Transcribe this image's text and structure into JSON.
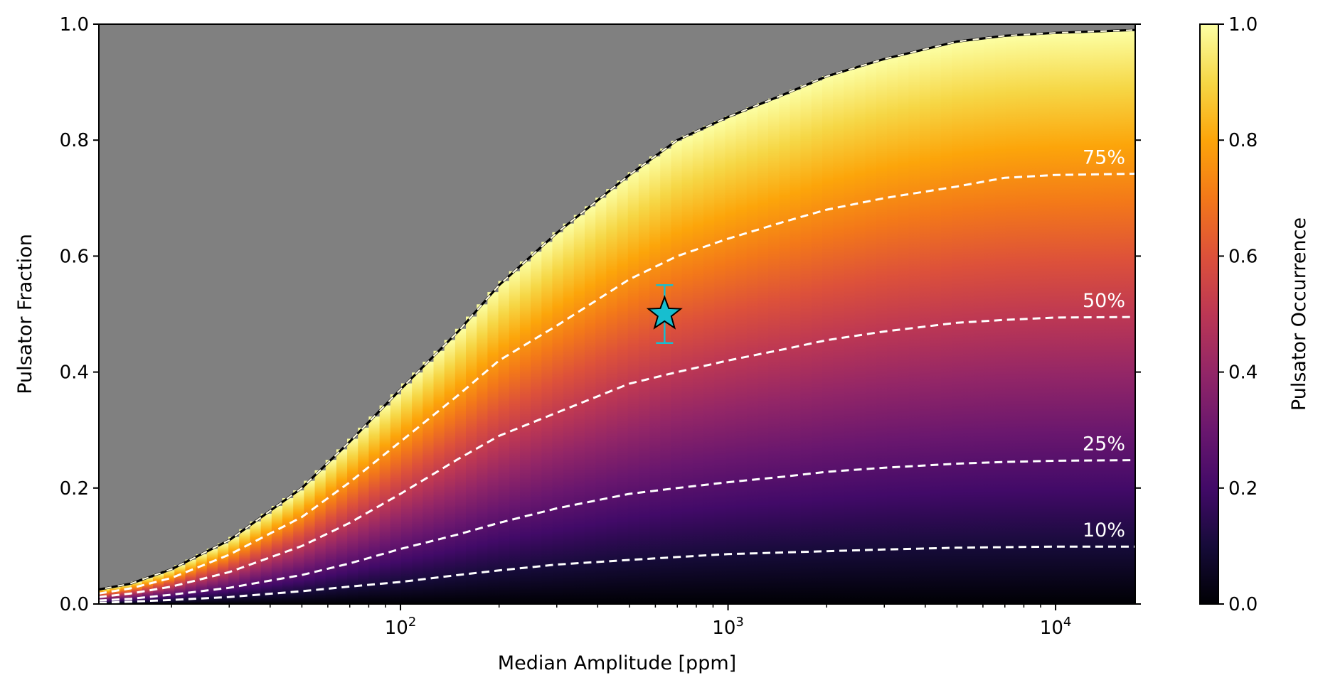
{
  "chart_data": {
    "type": "heatmap",
    "xlabel": "Median Amplitude [ppm]",
    "ylabel": "Pulsator Fraction",
    "x_scale": "log",
    "xlim": [
      12,
      17500
    ],
    "ylim": [
      0.0,
      1.0
    ],
    "x_ticks": [
      {
        "value": 100,
        "base": "10",
        "exp": "2"
      },
      {
        "value": 1000,
        "base": "10",
        "exp": "3"
      },
      {
        "value": 10000,
        "base": "10",
        "exp": "4"
      }
    ],
    "y_ticks": [
      "0.0",
      "0.2",
      "0.4",
      "0.6",
      "0.8",
      "1.0"
    ],
    "colorbar": {
      "label": "Pulsator Occurrence",
      "colormap": "inferno",
      "range": [
        0.0,
        1.0
      ],
      "ticks": [
        "0.0",
        "0.2",
        "0.4",
        "0.6",
        "0.8",
        "1.0"
      ]
    },
    "masked_region_color": "#808080",
    "boundary": {
      "x": [
        12,
        15,
        20,
        30,
        50,
        70,
        100,
        150,
        200,
        300,
        500,
        700,
        1000,
        1500,
        2000,
        3000,
        5000,
        7000,
        10000,
        17500
      ],
      "y": [
        0.025,
        0.035,
        0.06,
        0.11,
        0.2,
        0.28,
        0.37,
        0.47,
        0.55,
        0.64,
        0.74,
        0.8,
        0.84,
        0.88,
        0.91,
        0.94,
        0.97,
        0.98,
        0.985,
        0.99
      ]
    },
    "contours": [
      {
        "label": "75%",
        "level": 0.75,
        "x": [
          12,
          15,
          20,
          30,
          50,
          70,
          100,
          150,
          200,
          300,
          500,
          700,
          1000,
          1500,
          2000,
          3000,
          5000,
          7000,
          10000,
          17500
        ],
        "y": [
          0.018,
          0.027,
          0.045,
          0.085,
          0.15,
          0.21,
          0.28,
          0.36,
          0.42,
          0.48,
          0.56,
          0.6,
          0.63,
          0.66,
          0.68,
          0.7,
          0.72,
          0.735,
          0.74,
          0.742
        ]
      },
      {
        "label": "50%",
        "level": 0.5,
        "x": [
          12,
          15,
          20,
          30,
          50,
          70,
          100,
          150,
          200,
          300,
          500,
          700,
          1000,
          1500,
          2000,
          3000,
          5000,
          7000,
          10000,
          17500
        ],
        "y": [
          0.012,
          0.018,
          0.03,
          0.055,
          0.1,
          0.14,
          0.19,
          0.25,
          0.29,
          0.33,
          0.38,
          0.4,
          0.42,
          0.44,
          0.455,
          0.47,
          0.485,
          0.49,
          0.494,
          0.495
        ]
      },
      {
        "label": "25%",
        "level": 0.25,
        "x": [
          12,
          15,
          20,
          30,
          50,
          70,
          100,
          150,
          200,
          300,
          500,
          700,
          1000,
          1500,
          2000,
          3000,
          5000,
          7000,
          10000,
          17500
        ],
        "y": [
          0.006,
          0.009,
          0.016,
          0.028,
          0.05,
          0.07,
          0.095,
          0.12,
          0.14,
          0.165,
          0.19,
          0.2,
          0.21,
          0.22,
          0.228,
          0.235,
          0.242,
          0.245,
          0.247,
          0.248
        ]
      },
      {
        "label": "10%",
        "level": 0.1,
        "x": [
          12,
          15,
          20,
          30,
          50,
          70,
          100,
          150,
          200,
          300,
          500,
          700,
          1000,
          1500,
          2000,
          3000,
          5000,
          7000,
          10000,
          17500
        ],
        "y": [
          0.002,
          0.004,
          0.007,
          0.012,
          0.022,
          0.03,
          0.038,
          0.05,
          0.058,
          0.068,
          0.076,
          0.081,
          0.086,
          0.089,
          0.091,
          0.094,
          0.097,
          0.098,
          0.099,
          0.099
        ]
      }
    ],
    "marker": {
      "type": "star",
      "x": 640,
      "y": 0.5,
      "y_err": 0.05,
      "color": "#17becf"
    }
  }
}
